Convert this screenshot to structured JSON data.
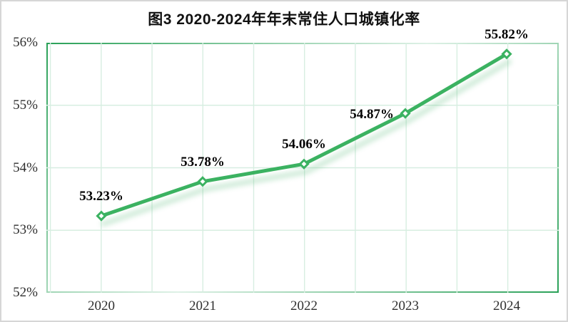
{
  "page": {
    "border_color": "#d6d6d6",
    "background": "#ffffff"
  },
  "chart": {
    "title": "图3 2020-2024年年末常住人口城镇化率"
  },
  "chart_data": {
    "type": "line",
    "title": "图3 2020-2024年年末常住人口城镇化率",
    "xlabel": "",
    "ylabel": "",
    "categories": [
      "2020",
      "2021",
      "2022",
      "2023",
      "2024"
    ],
    "series": [
      {
        "name": "年末常住人口城镇化率",
        "values": [
          53.23,
          53.78,
          54.06,
          54.87,
          55.82
        ]
      }
    ],
    "data_labels": [
      "53.23%",
      "53.78%",
      "54.06%",
      "54.87%",
      "55.82%"
    ],
    "label_positions": [
      "above",
      "above",
      "above",
      "left",
      "above"
    ],
    "ylim": [
      52,
      56
    ],
    "y_ticks": [
      {
        "label": "56%",
        "value": 56
      },
      {
        "label": "55%",
        "value": 55
      },
      {
        "label": "54%",
        "value": 54
      },
      {
        "label": "53%",
        "value": 53
      },
      {
        "label": "52%",
        "value": 52
      }
    ],
    "grid": true,
    "legend": "none",
    "colors": {
      "line": "#3bb261",
      "marker_fill": "#ffffff",
      "marker_stroke": "#3bb261",
      "shadow": "#6cc289",
      "gridline": "#d7eee1",
      "border_dark": "#2aa158",
      "border_light": "#def1e6",
      "title": "#111111",
      "tick": "#2f2f2f",
      "data_label": "#000000"
    }
  }
}
